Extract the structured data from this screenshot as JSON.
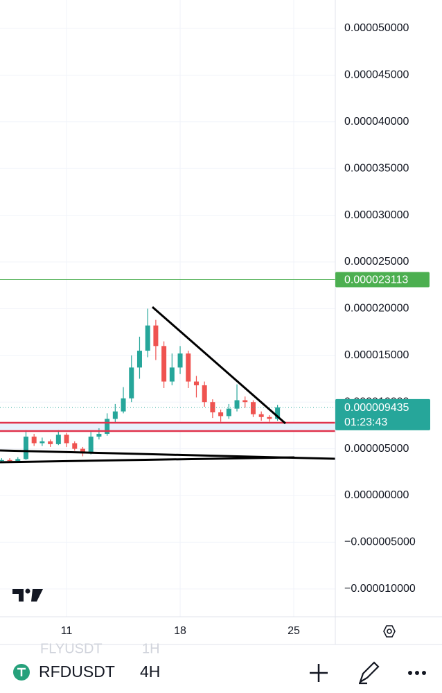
{
  "chart_data": {
    "type": "candlestick",
    "x": [
      7,
      7.5,
      8,
      8.5,
      9,
      9.5,
      10,
      10.5,
      11,
      11.5,
      12,
      12.5,
      13,
      13.5,
      14,
      14.5,
      15,
      15.5,
      16,
      16.5,
      17,
      17.5,
      18,
      18.5,
      19,
      19.5,
      20,
      20.5,
      21,
      21.5,
      22,
      22.5,
      23,
      23.5,
      24
    ],
    "open": [
      3.7e-06,
      3.8e-06,
      3.7e-06,
      3.9e-06,
      6.3e-06,
      5.6e-06,
      5.8e-06,
      5.5e-06,
      6.5e-06,
      5.6e-06,
      5e-06,
      4.5e-06,
      6.3e-06,
      6.6e-06,
      8.2e-06,
      9e-06,
      1.04e-05,
      1.37e-05,
      1.55e-05,
      1.82e-05,
      1.6e-05,
      1.22e-05,
      1.37e-05,
      1.52e-05,
      1.22e-05,
      1.18e-05,
      1e-05,
      8.9e-06,
      8.5e-06,
      9.3e-06,
      1.02e-05,
      1e-05,
      8.7e-06,
      8.4e-06,
      8.2e-06
    ],
    "close": [
      3.8e-06,
      3.7e-06,
      3.9e-06,
      6.3e-06,
      5.6e-06,
      5.8e-06,
      5.5e-06,
      6.5e-06,
      5.6e-06,
      5e-06,
      4.5e-06,
      6.3e-06,
      6.6e-06,
      8.2e-06,
      9e-06,
      1.04e-05,
      1.37e-05,
      1.55e-05,
      1.82e-05,
      1.6e-05,
      1.22e-05,
      1.37e-05,
      1.52e-05,
      1.22e-05,
      1.18e-05,
      1e-05,
      8.9e-06,
      8.5e-06,
      9.3e-06,
      1.02e-05,
      1e-05,
      8.7e-06,
      8.4e-06,
      8.2e-06,
      9.435e-06
    ],
    "high": [
      4e-06,
      4e-06,
      4.1e-06,
      7e-06,
      6.6e-06,
      6.2e-06,
      6e-06,
      7e-06,
      6.7e-06,
      5.8e-06,
      5.2e-06,
      6.8e-06,
      7.2e-06,
      8.8e-06,
      9.8e-06,
      1.16e-05,
      1.5e-05,
      1.7e-05,
      2e-05,
      1.88e-05,
      1.65e-05,
      1.52e-05,
      1.6e-05,
      1.55e-05,
      1.28e-05,
      1.22e-05,
      1.03e-05,
      9.2e-06,
      9.8e-06,
      1.19e-05,
      1.06e-05,
      1.02e-05,
      9e-06,
      8.6e-06,
      9.7e-06
    ],
    "low": [
      3.6e-06,
      3.6e-06,
      3.6e-06,
      3.8e-06,
      5.3e-06,
      5.3e-06,
      5.2e-06,
      5.4e-06,
      5.2e-06,
      4.8e-06,
      4.2e-06,
      4.4e-06,
      6e-06,
      6.4e-06,
      7.8e-06,
      8.8e-06,
      1e-05,
      1.25e-05,
      1.48e-05,
      1.45e-05,
      1.15e-05,
      1.18e-05,
      1.3e-05,
      1.15e-05,
      1.05e-05,
      9.5e-06,
      8.3e-06,
      7.9e-06,
      8.2e-06,
      9e-06,
      9.4e-06,
      8.4e-06,
      8e-06,
      7.9e-06,
      8e-06
    ],
    "up_color": "#26a69a",
    "down_color": "#ef5350",
    "xlim": [
      6.9,
      27.56
    ],
    "xticks": [
      11,
      18,
      25
    ],
    "ylim": [
      -1.298e-05,
      5.304e-05
    ],
    "yticks": [
      {
        "value": 5e-05,
        "label": "0.000050000"
      },
      {
        "value": 4.5e-05,
        "label": "0.000045000"
      },
      {
        "value": 4e-05,
        "label": "0.000040000"
      },
      {
        "value": 3.5e-05,
        "label": "0.000035000"
      },
      {
        "value": 3e-05,
        "label": "0.000030000"
      },
      {
        "value": 2.5e-05,
        "label": "0.000025000"
      },
      {
        "value": 2e-05,
        "label": "0.000020000"
      },
      {
        "value": 1.5e-05,
        "label": "0.000015000"
      },
      {
        "value": 1e-05,
        "label": "0.000010000"
      },
      {
        "value": 5e-06,
        "label": "0.000005000"
      },
      {
        "value": 0,
        "label": "0.000000000"
      },
      {
        "value": -5e-06,
        "label": "−0.000005000"
      },
      {
        "value": -1e-05,
        "label": "−0.000010000"
      }
    ],
    "grid": true,
    "price_line": {
      "value": 2.3113e-05,
      "label": "0.000023113",
      "color": "#4caf50"
    },
    "last_price": {
      "value": 9.435e-06,
      "label": "0.000009435",
      "countdown": "01:23:43",
      "color": "#26a69a"
    },
    "levels": {
      "values": [
        7.79e-06,
        6.9e-06
      ],
      "color": "#e0324b"
    }
  },
  "toolbar": {
    "prev_symbol": "FLYUSDT",
    "prev_interval": "1H",
    "symbol": "RFDUSDT",
    "interval": "4H"
  }
}
